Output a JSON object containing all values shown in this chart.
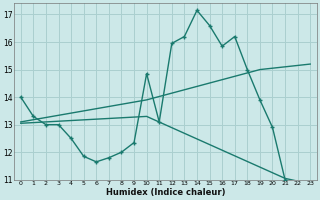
{
  "xlabel": "Humidex (Indice chaleur)",
  "bg_color": "#cce8e8",
  "grid_color": "#aacfcf",
  "line_color": "#1a7a6e",
  "xlim": [
    -0.5,
    23.5
  ],
  "ylim": [
    11,
    17.4
  ],
  "yticks": [
    11,
    12,
    13,
    14,
    15,
    16,
    17
  ],
  "xticks": [
    0,
    1,
    2,
    3,
    4,
    5,
    6,
    7,
    8,
    9,
    10,
    11,
    12,
    13,
    14,
    15,
    16,
    17,
    18,
    19,
    20,
    21,
    22,
    23
  ],
  "series1_x": [
    0,
    1,
    2,
    3,
    4,
    5,
    6,
    7,
    8,
    9,
    10,
    11,
    12,
    13,
    14,
    15,
    16,
    17,
    18,
    19,
    20,
    21,
    22,
    23
  ],
  "series1_y": [
    14.0,
    13.3,
    13.0,
    13.0,
    12.5,
    11.85,
    11.65,
    11.8,
    12.0,
    12.35,
    14.85,
    13.1,
    15.95,
    16.2,
    17.15,
    16.6,
    15.85,
    16.2,
    15.0,
    13.9,
    12.9,
    11.0,
    10.85,
    10.85
  ],
  "series2_x": [
    0,
    10,
    19,
    23
  ],
  "series2_y": [
    13.1,
    13.9,
    15.0,
    15.2
  ],
  "series3_x": [
    0,
    10,
    21,
    23
  ],
  "series3_y": [
    13.05,
    13.3,
    11.05,
    10.85
  ]
}
